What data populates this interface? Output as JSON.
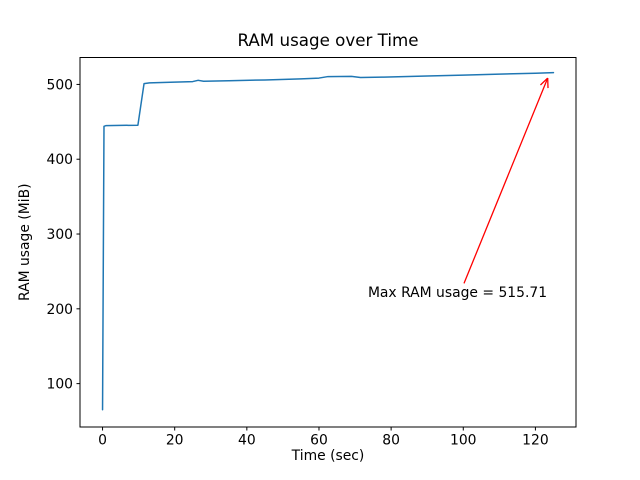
{
  "figure": {
    "background": "#ffffff",
    "spine_color": "#000000",
    "text_color": "#000000"
  },
  "chart_data": {
    "type": "line",
    "title": "RAM usage over Time",
    "xlabel": "Time (sec)",
    "ylabel": "RAM usage (MiB)",
    "xlim": [
      -6.25,
      131.25
    ],
    "ylim": [
      42,
      536
    ],
    "xticks": [
      0,
      20,
      40,
      60,
      80,
      100,
      120
    ],
    "yticks": [
      100,
      200,
      300,
      400,
      500
    ],
    "grid": false,
    "legend": null,
    "series": [
      {
        "name": "RAM usage",
        "color": "#1f77b4",
        "line_width": 1.5,
        "points": [
          [
            0,
            65
          ],
          [
            0.4,
            444
          ],
          [
            1,
            445
          ],
          [
            9.8,
            445.5
          ],
          [
            11.5,
            501
          ],
          [
            13,
            502
          ],
          [
            20,
            503
          ],
          [
            25,
            503.8
          ],
          [
            26.5,
            505.5
          ],
          [
            28,
            504.2
          ],
          [
            35,
            505
          ],
          [
            45,
            506
          ],
          [
            55,
            507.5
          ],
          [
            60,
            508.5
          ],
          [
            62.5,
            510.5
          ],
          [
            69,
            510.8
          ],
          [
            71.5,
            509.3
          ],
          [
            78,
            509.8
          ],
          [
            90,
            511.3
          ],
          [
            100,
            512.5
          ],
          [
            110,
            513.8
          ],
          [
            120,
            515
          ],
          [
            125,
            515.71
          ]
        ]
      }
    ],
    "max_value": 515.71,
    "annotation": {
      "label": "Max RAM usage = 515.71",
      "color": "#ff0000",
      "text_xy": [
        98.4,
        215.8
      ],
      "arrow_tail_xy": [
        100.2,
        234
      ],
      "arrow_tip_xy": [
        123.4,
        508.5
      ]
    }
  }
}
